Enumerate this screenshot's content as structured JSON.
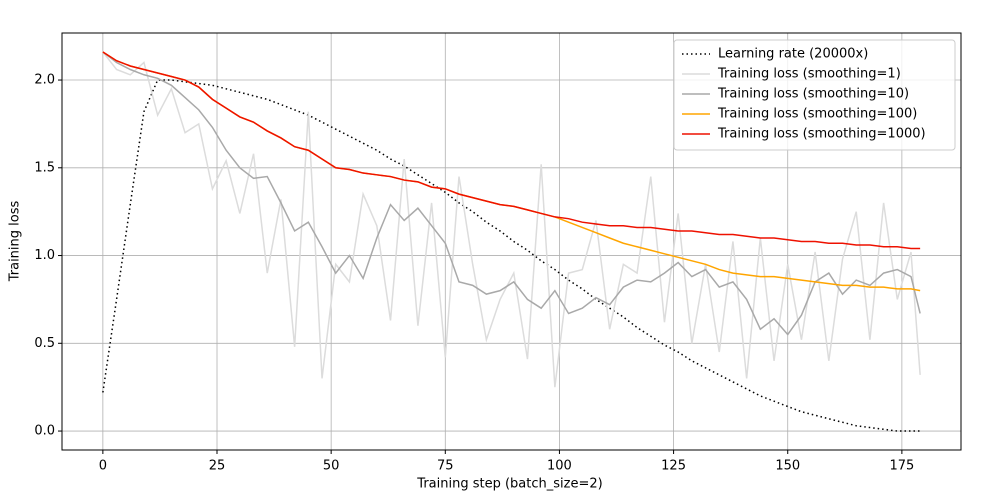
{
  "chart_data": {
    "type": "line",
    "xlabel": "Training step (batch_size=2)",
    "ylabel": "Training loss",
    "x": [
      0,
      3,
      6,
      9,
      12,
      15,
      18,
      21,
      24,
      27,
      30,
      33,
      36,
      39,
      42,
      45,
      48,
      51,
      54,
      57,
      60,
      63,
      66,
      69,
      72,
      75,
      78,
      81,
      84,
      87,
      90,
      93,
      96,
      99,
      102,
      105,
      108,
      111,
      114,
      117,
      120,
      123,
      126,
      129,
      132,
      135,
      138,
      141,
      144,
      147,
      150,
      153,
      156,
      159,
      162,
      165,
      168,
      171,
      174,
      177,
      179
    ],
    "xlim": [
      -8.95,
      187.95
    ],
    "xticks": [
      0,
      25,
      50,
      75,
      100,
      125,
      150,
      175
    ],
    "ylim": [
      -0.108,
      2.268
    ],
    "yticks": [
      {
        "value": 0,
        "label": "0.0"
      },
      {
        "value": 0.5,
        "label": "0.5"
      },
      {
        "value": 1,
        "label": "1.0"
      },
      {
        "value": 1.5,
        "label": "1.5"
      },
      {
        "value": 2,
        "label": "2.0"
      }
    ],
    "grid": true,
    "legend": "upper right",
    "series": [
      {
        "name": "Learning rate (20000x)",
        "color": "#000000",
        "linestyle": "dotted",
        "values": [
          0.22,
          0.75,
          1.29,
          1.82,
          2.0,
          2.0,
          1.99,
          1.98,
          1.97,
          1.95,
          1.93,
          1.91,
          1.89,
          1.86,
          1.83,
          1.8,
          1.76,
          1.72,
          1.68,
          1.64,
          1.6,
          1.55,
          1.51,
          1.46,
          1.41,
          1.36,
          1.3,
          1.25,
          1.19,
          1.14,
          1.08,
          1.03,
          0.97,
          0.92,
          0.86,
          0.81,
          0.75,
          0.7,
          0.65,
          0.59,
          0.54,
          0.49,
          0.45,
          0.4,
          0.36,
          0.32,
          0.28,
          0.24,
          0.2,
          0.17,
          0.14,
          0.11,
          0.09,
          0.07,
          0.05,
          0.03,
          0.02,
          0.01,
          0.0,
          0.0,
          0.0
        ]
      },
      {
        "name": "Training loss (smoothing=1)",
        "color": "#dcdcdc",
        "linestyle": "solid",
        "values": [
          2.16,
          2.06,
          2.03,
          2.1,
          1.8,
          1.95,
          1.7,
          1.75,
          1.38,
          1.54,
          1.24,
          1.58,
          0.9,
          1.32,
          0.48,
          1.82,
          0.3,
          0.95,
          0.85,
          1.35,
          1.17,
          0.63,
          1.55,
          0.6,
          1.3,
          0.42,
          1.45,
          0.95,
          0.52,
          0.75,
          0.9,
          0.41,
          1.52,
          0.25,
          0.9,
          0.92,
          1.2,
          0.58,
          0.95,
          0.9,
          1.45,
          0.62,
          1.24,
          0.5,
          0.95,
          0.45,
          1.08,
          0.3,
          1.1,
          0.4,
          0.95,
          0.52,
          1.02,
          0.4,
          0.98,
          1.25,
          0.52,
          1.3,
          0.75,
          1.02,
          0.32
        ]
      },
      {
        "name": "Training loss (smoothing=10)",
        "color": "#a9a9a9",
        "linestyle": "solid",
        "values": [
          2.16,
          2.1,
          2.06,
          2.03,
          2.01,
          1.97,
          1.9,
          1.83,
          1.73,
          1.6,
          1.5,
          1.44,
          1.45,
          1.3,
          1.14,
          1.19,
          1.05,
          0.9,
          1.0,
          0.87,
          1.1,
          1.29,
          1.2,
          1.27,
          1.17,
          1.07,
          0.85,
          0.83,
          0.78,
          0.8,
          0.85,
          0.75,
          0.7,
          0.8,
          0.67,
          0.7,
          0.76,
          0.72,
          0.82,
          0.86,
          0.85,
          0.9,
          0.96,
          0.88,
          0.92,
          0.82,
          0.85,
          0.75,
          0.58,
          0.64,
          0.55,
          0.66,
          0.85,
          0.9,
          0.78,
          0.86,
          0.83,
          0.9,
          0.92,
          0.88,
          0.67
        ]
      },
      {
        "name": "Training loss (smoothing=100)",
        "color": "#ffa500",
        "linestyle": "solid",
        "values": [
          2.16,
          2.11,
          2.08,
          2.06,
          2.04,
          2.02,
          2.0,
          1.96,
          1.89,
          1.84,
          1.79,
          1.76,
          1.71,
          1.67,
          1.62,
          1.6,
          1.55,
          1.5,
          1.49,
          1.47,
          1.46,
          1.45,
          1.43,
          1.42,
          1.39,
          1.38,
          1.35,
          1.33,
          1.31,
          1.29,
          1.28,
          1.26,
          1.24,
          1.22,
          1.19,
          1.16,
          1.13,
          1.1,
          1.07,
          1.05,
          1.03,
          1.01,
          0.99,
          0.97,
          0.95,
          0.92,
          0.9,
          0.89,
          0.88,
          0.88,
          0.87,
          0.86,
          0.85,
          0.84,
          0.83,
          0.83,
          0.82,
          0.82,
          0.81,
          0.81,
          0.8
        ]
      },
      {
        "name": "Training loss (smoothing=1000)",
        "color": "#ee1100",
        "linestyle": "solid",
        "values": [
          2.16,
          2.11,
          2.08,
          2.06,
          2.04,
          2.02,
          2.0,
          1.96,
          1.89,
          1.84,
          1.79,
          1.76,
          1.71,
          1.67,
          1.62,
          1.6,
          1.55,
          1.5,
          1.49,
          1.47,
          1.46,
          1.45,
          1.43,
          1.42,
          1.39,
          1.38,
          1.35,
          1.33,
          1.31,
          1.29,
          1.28,
          1.26,
          1.24,
          1.22,
          1.21,
          1.19,
          1.18,
          1.17,
          1.17,
          1.16,
          1.16,
          1.15,
          1.14,
          1.14,
          1.13,
          1.12,
          1.12,
          1.11,
          1.1,
          1.1,
          1.09,
          1.08,
          1.08,
          1.07,
          1.07,
          1.06,
          1.06,
          1.05,
          1.05,
          1.04,
          1.04
        ]
      }
    ]
  }
}
